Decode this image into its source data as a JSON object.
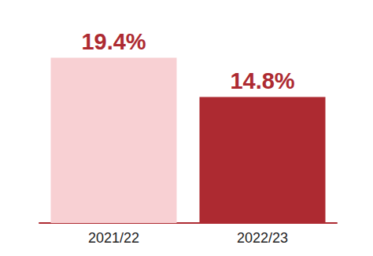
{
  "chart_data": {
    "type": "bar",
    "categories": [
      "2021/22",
      "2022/23"
    ],
    "values": [
      19.4,
      14.8
    ],
    "value_labels": [
      "19.4%",
      "14.8%"
    ],
    "colors": [
      "#f8d0d3",
      "#ad2a31"
    ],
    "ylim": [
      0,
      20
    ],
    "yticks": [
      0,
      20
    ],
    "grid": false,
    "data_labels": true,
    "tick_labels": "x"
  }
}
